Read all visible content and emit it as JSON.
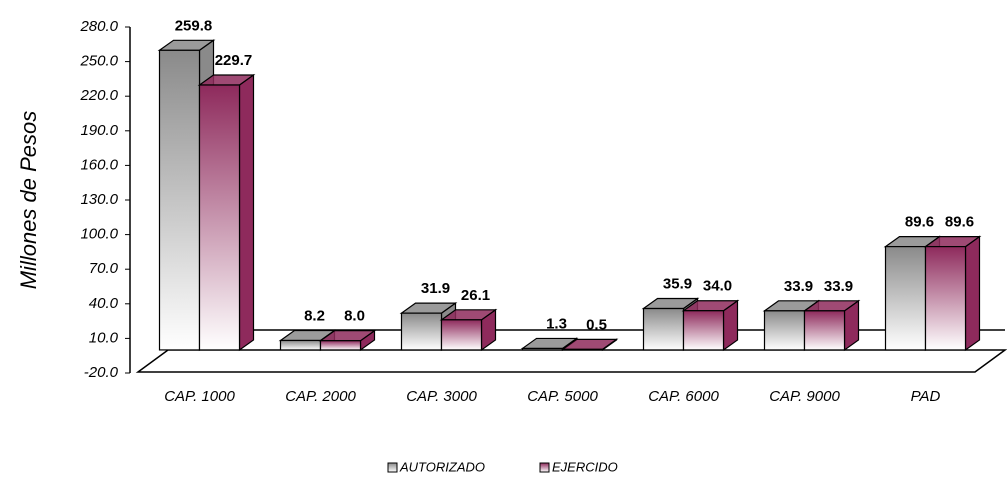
{
  "chart_data": {
    "type": "bar3d",
    "y_axis_label": "Millones de Pesos",
    "categories": [
      "CAP. 1000",
      "CAP. 2000",
      "CAP. 3000",
      "CAP. 5000",
      "CAP. 6000",
      "CAP. 9000",
      "PAD"
    ],
    "series": [
      {
        "name": "AUTORIZADO",
        "color": "#8a8a8a",
        "values": [
          259.8,
          8.2,
          31.9,
          1.3,
          35.9,
          33.9,
          89.6
        ],
        "value_labels": [
          "259.8",
          "8.2",
          "31.9",
          "1.3",
          "35.9",
          "33.9",
          "89.6"
        ]
      },
      {
        "name": "EJERCIDO",
        "color": "#8e2a5c",
        "values": [
          229.7,
          8.0,
          26.1,
          0.5,
          34.0,
          33.9,
          89.6
        ],
        "value_labels": [
          "229.7",
          "8.0",
          "26.1",
          "0.5",
          "34.0",
          "33.9",
          "89.6"
        ]
      }
    ],
    "ylim": [
      -20,
      280
    ],
    "yticks": [
      {
        "value": -20,
        "label": "-20.0"
      },
      {
        "value": 10,
        "label": "10.0"
      },
      {
        "value": 40,
        "label": "40.0"
      },
      {
        "value": 70,
        "label": "70.0"
      },
      {
        "value": 100,
        "label": "100.0"
      },
      {
        "value": 130,
        "label": "130.0"
      },
      {
        "value": 160,
        "label": "160.0"
      },
      {
        "value": 190,
        "label": "190.0"
      },
      {
        "value": 220,
        "label": "220.0"
      },
      {
        "value": 250,
        "label": "250.0"
      },
      {
        "value": 280,
        "label": "280.0"
      }
    ],
    "legend": "bottom",
    "grid": false
  }
}
